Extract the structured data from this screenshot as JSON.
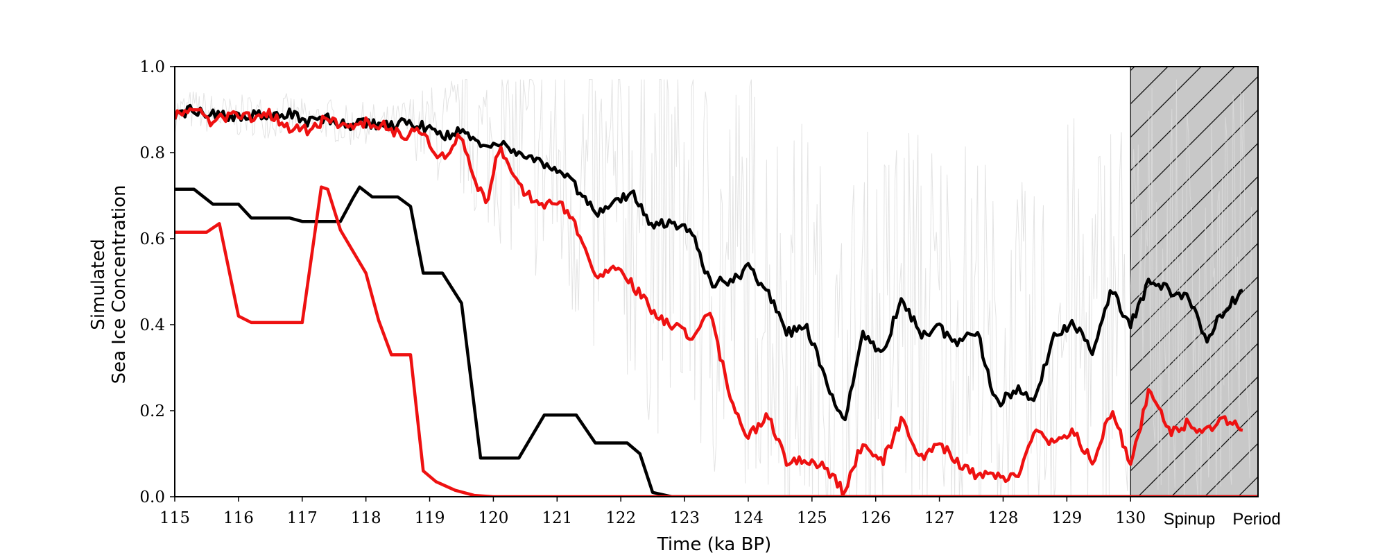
{
  "chart_data": {
    "type": "line",
    "xlabel": "Time (ka BP)",
    "ylabel": [
      "Simulated",
      "Sea Ice Concentration"
    ],
    "xlim": [
      115,
      132
    ],
    "ylim": [
      0.0,
      1.0
    ],
    "x_ticks": [
      115,
      116,
      117,
      118,
      119,
      120,
      121,
      122,
      123,
      124,
      125,
      126,
      127,
      128,
      129,
      130
    ],
    "x_tick_labels": [
      "115",
      "116",
      "117",
      "118",
      "119",
      "120",
      "121",
      "122",
      "123",
      "124",
      "125",
      "126",
      "127",
      "128",
      "129",
      "130"
    ],
    "y_ticks": [
      0.0,
      0.2,
      0.4,
      0.6,
      0.8,
      1.0
    ],
    "y_tick_labels": [
      "0.0",
      "0.2",
      "0.4",
      "0.6",
      "0.8",
      "1.0"
    ],
    "spinup_region": {
      "x_start": 130,
      "x_end": 132,
      "labels": [
        "Spinup",
        "Period"
      ]
    },
    "grid": false,
    "legend": "none",
    "colors": {
      "black": "#000000",
      "red": "#ee1111",
      "tan": "#f1d9a6",
      "gray": "#dcdcdc",
      "spinup_fill": "#c8c8c8"
    },
    "series": [
      {
        "color": "black",
        "style": "smoothed",
        "x": [
          115.0,
          115.3,
          115.6,
          115.9,
          116.2,
          116.5,
          116.8,
          117.1,
          117.4,
          117.7,
          118.0,
          118.3,
          118.6,
          118.9,
          119.2,
          119.5,
          119.8,
          120.1,
          120.4,
          120.7,
          121.0,
          121.3,
          121.6,
          121.9,
          122.2,
          122.5,
          122.8,
          123.1,
          123.4,
          123.7,
          124.0,
          124.3,
          124.6,
          124.9,
          125.2,
          125.5,
          125.8,
          126.1,
          126.4,
          126.7,
          127.0,
          127.3,
          127.6,
          127.9,
          128.2,
          128.5,
          128.8,
          129.1,
          129.4,
          129.7,
          130.0,
          130.3,
          130.6,
          130.9,
          131.2,
          131.5,
          131.8
        ],
        "y": [
          0.89,
          0.9,
          0.89,
          0.88,
          0.89,
          0.88,
          0.89,
          0.87,
          0.88,
          0.86,
          0.87,
          0.86,
          0.87,
          0.86,
          0.84,
          0.85,
          0.82,
          0.82,
          0.8,
          0.78,
          0.76,
          0.72,
          0.66,
          0.69,
          0.7,
          0.63,
          0.64,
          0.62,
          0.5,
          0.5,
          0.53,
          0.48,
          0.38,
          0.4,
          0.28,
          0.17,
          0.38,
          0.33,
          0.46,
          0.38,
          0.39,
          0.36,
          0.38,
          0.21,
          0.25,
          0.22,
          0.38,
          0.4,
          0.34,
          0.48,
          0.4,
          0.5,
          0.48,
          0.46,
          0.37,
          0.44,
          0.48
        ]
      },
      {
        "color": "red",
        "style": "smoothed",
        "x": [
          115.0,
          115.3,
          115.6,
          115.9,
          116.2,
          116.5,
          116.8,
          117.1,
          117.4,
          117.7,
          118.0,
          118.3,
          118.6,
          118.9,
          119.1,
          119.3,
          119.5,
          119.7,
          119.9,
          120.1,
          120.4,
          120.7,
          121.0,
          121.3,
          121.6,
          121.9,
          122.2,
          122.5,
          122.8,
          123.1,
          123.4,
          123.7,
          124.0,
          124.3,
          124.6,
          124.9,
          125.2,
          125.5,
          125.8,
          126.1,
          126.4,
          126.7,
          127.0,
          127.3,
          127.6,
          127.9,
          128.2,
          128.5,
          128.8,
          129.1,
          129.4,
          129.7,
          130.0,
          130.3,
          130.6,
          130.9,
          131.2,
          131.5,
          131.8
        ],
        "y": [
          0.89,
          0.9,
          0.87,
          0.89,
          0.88,
          0.89,
          0.86,
          0.85,
          0.88,
          0.86,
          0.87,
          0.86,
          0.84,
          0.85,
          0.78,
          0.8,
          0.85,
          0.73,
          0.69,
          0.82,
          0.72,
          0.68,
          0.69,
          0.63,
          0.52,
          0.53,
          0.49,
          0.43,
          0.4,
          0.37,
          0.43,
          0.24,
          0.14,
          0.19,
          0.08,
          0.09,
          0.07,
          0.01,
          0.13,
          0.08,
          0.18,
          0.09,
          0.12,
          0.08,
          0.05,
          0.05,
          0.04,
          0.16,
          0.12,
          0.15,
          0.08,
          0.2,
          0.08,
          0.25,
          0.15,
          0.17,
          0.15,
          0.18,
          0.16
        ]
      },
      {
        "color": "black",
        "style": "step",
        "x": [
          115.0,
          115.3,
          115.6,
          116.0,
          116.2,
          116.8,
          117.0,
          117.6,
          117.8,
          117.9,
          118.1,
          118.5,
          118.7,
          118.9,
          119.1,
          119.2,
          119.5,
          119.8,
          120.1,
          120.4,
          120.8,
          121.0,
          121.3,
          121.6,
          121.9,
          122.1,
          122.3,
          122.5,
          122.8,
          132.0
        ],
        "y": [
          0.715,
          0.715,
          0.68,
          0.68,
          0.648,
          0.648,
          0.64,
          0.64,
          0.695,
          0.72,
          0.697,
          0.697,
          0.675,
          0.52,
          0.52,
          0.52,
          0.45,
          0.09,
          0.09,
          0.09,
          0.19,
          0.19,
          0.19,
          0.125,
          0.125,
          0.125,
          0.1,
          0.01,
          0.0,
          0.0
        ]
      },
      {
        "color": "red",
        "style": "step",
        "x": [
          115.0,
          115.3,
          115.5,
          115.7,
          116.0,
          116.2,
          116.4,
          117.0,
          117.3,
          117.4,
          117.6,
          118.0,
          118.2,
          118.4,
          118.7,
          118.9,
          119.1,
          119.4,
          119.7,
          120.0,
          132.0
        ],
        "y": [
          0.615,
          0.615,
          0.615,
          0.635,
          0.42,
          0.405,
          0.405,
          0.405,
          0.72,
          0.715,
          0.62,
          0.52,
          0.41,
          0.33,
          0.33,
          0.06,
          0.035,
          0.015,
          0.003,
          0.0,
          0.0
        ]
      }
    ]
  }
}
